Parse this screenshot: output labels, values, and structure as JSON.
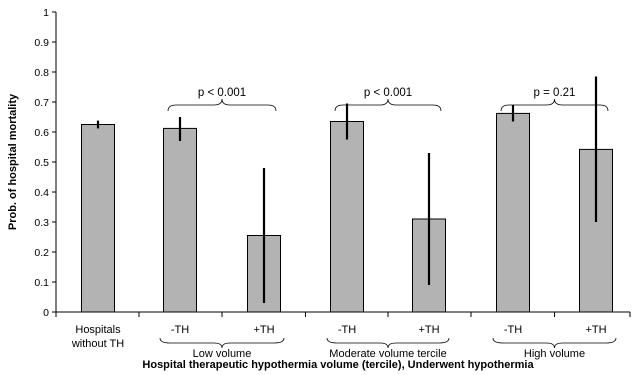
{
  "chart_data": {
    "type": "bar",
    "xlabel": "Hospital therapeutic hypothermia volume (tercile), Underwent hypothermia",
    "ylabel": "Prob. of hospital mortality",
    "ylim": [
      0,
      1
    ],
    "yticks": [
      0,
      0.1,
      0.2,
      0.3,
      0.4,
      0.5,
      0.6,
      0.7,
      0.8,
      0.9,
      1
    ],
    "ytick_labels": [
      "0",
      "0.1",
      "0.2",
      "0.3",
      "0.4",
      "0.5",
      "0.6",
      "0.7",
      "0.8",
      "0.9",
      "1"
    ],
    "bar_color": "#b3b3b3",
    "grid": false,
    "legend": "none",
    "bars": [
      {
        "category": "Hospitals without TH",
        "value": 0.625,
        "ci": [
          0.612,
          0.638
        ]
      },
      {
        "category": "-TH",
        "group": "Low volume",
        "value": 0.612,
        "ci": [
          0.57,
          0.65
        ]
      },
      {
        "category": "+TH",
        "group": "Low volume",
        "value": 0.255,
        "ci": [
          0.03,
          0.48
        ]
      },
      {
        "category": "-TH",
        "group": "Moderate volume tercile",
        "value": 0.635,
        "ci": [
          0.575,
          0.695
        ]
      },
      {
        "category": "+TH",
        "group": "Moderate volume tercile",
        "value": 0.31,
        "ci": [
          0.09,
          0.53
        ]
      },
      {
        "category": "-TH",
        "group": "High volume",
        "value": 0.662,
        "ci": [
          0.635,
          0.69
        ]
      },
      {
        "category": "+TH",
        "group": "High volume",
        "value": 0.542,
        "ci": [
          0.3,
          0.785
        ]
      }
    ],
    "category_labels": [
      {
        "line1": "Hospitals",
        "line2": "without TH"
      },
      {
        "line1": "-TH"
      },
      {
        "line1": "+TH"
      },
      {
        "line1": "-TH"
      },
      {
        "line1": "+TH"
      },
      {
        "line1": "-TH"
      },
      {
        "line1": "+TH"
      }
    ],
    "groups": [
      {
        "name": "Low volume",
        "bars": [
          1,
          2
        ]
      },
      {
        "name": "Moderate volume tercile",
        "bars": [
          3,
          4
        ]
      },
      {
        "name": "High volume",
        "bars": [
          5,
          6
        ]
      }
    ],
    "annotations": [
      {
        "text": "p < 0.001",
        "bars": [
          1,
          2
        ]
      },
      {
        "text": "p < 0.001",
        "bars": [
          3,
          4
        ]
      },
      {
        "text": "p = 0.21",
        "bars": [
          5,
          6
        ]
      }
    ]
  }
}
